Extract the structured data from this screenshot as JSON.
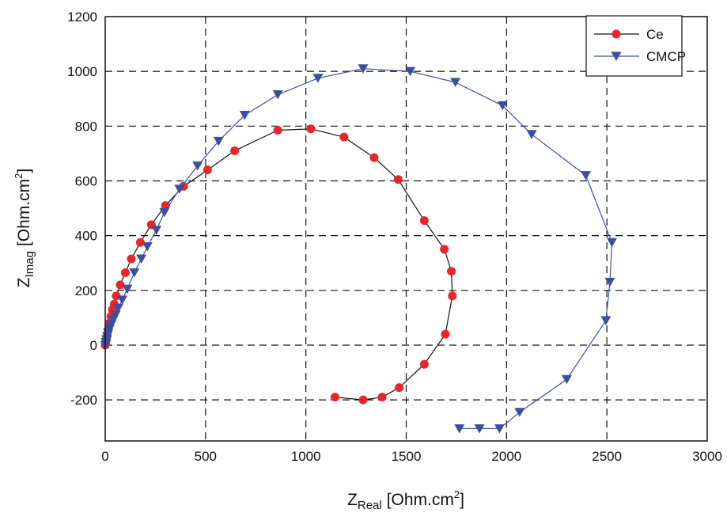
{
  "chart_data": {
    "type": "scatter",
    "title": "",
    "xlabel": {
      "main": "Z",
      "sub": "Real",
      "unit": "[Ohm.cm",
      "sup": "2",
      "close": "]"
    },
    "ylabel": {
      "main": "Z",
      "sub": "Imag",
      "unit": "[Ohm.cm",
      "sup": "2",
      "close": "]"
    },
    "xlim": [
      0,
      3000
    ],
    "ylim": [
      -350,
      1200
    ],
    "xticks": [
      0,
      500,
      1000,
      1500,
      2000,
      2500,
      3000
    ],
    "yticks": [
      -200,
      0,
      200,
      400,
      600,
      800,
      1000,
      1200
    ],
    "xtick_labels": [
      "0",
      "500",
      "1000",
      "1500",
      "2000",
      "2500",
      "3000"
    ],
    "ytick_labels": [
      "-200",
      "0",
      "200",
      "400",
      "600",
      "800",
      "1000",
      "1200"
    ],
    "grid": true,
    "legend_position": "top-right",
    "series": [
      {
        "name": "Ce",
        "color": "#e8262a",
        "line_color": "#111111",
        "marker": "circle",
        "x": [
          0,
          3,
          6,
          10,
          15,
          20,
          28,
          36,
          45,
          55,
          75,
          100,
          130,
          175,
          230,
          300,
          390,
          510,
          645,
          860,
          1025,
          1190,
          1340,
          1460,
          1590,
          1690,
          1725,
          1730,
          1695,
          1590,
          1465,
          1380,
          1285,
          1145
        ],
        "y": [
          0,
          8,
          20,
          35,
          55,
          80,
          105,
          130,
          150,
          180,
          220,
          265,
          315,
          375,
          440,
          510,
          580,
          640,
          710,
          785,
          790,
          760,
          685,
          605,
          455,
          350,
          270,
          180,
          40,
          -70,
          -155,
          -190,
          -200,
          -190
        ]
      },
      {
        "name": "CMCP",
        "color": "#3b4fa0",
        "line_color": "#3b4fa0",
        "marker": "triangle-down",
        "x": [
          0,
          3,
          6,
          10,
          15,
          22,
          30,
          40,
          52,
          65,
          85,
          110,
          145,
          180,
          210,
          255,
          295,
          370,
          460,
          565,
          695,
          860,
          1060,
          1285,
          1520,
          1745,
          1980,
          2125,
          2395,
          2525,
          2515,
          2495,
          2300,
          2065,
          1965,
          1865,
          1765
        ],
        "y": [
          0,
          10,
          20,
          32,
          45,
          60,
          75,
          92,
          110,
          135,
          165,
          205,
          265,
          315,
          360,
          420,
          485,
          570,
          655,
          745,
          840,
          915,
          975,
          1010,
          1000,
          960,
          875,
          770,
          620,
          375,
          230,
          90,
          -125,
          -245,
          -305,
          -305,
          -305
        ]
      }
    ]
  }
}
